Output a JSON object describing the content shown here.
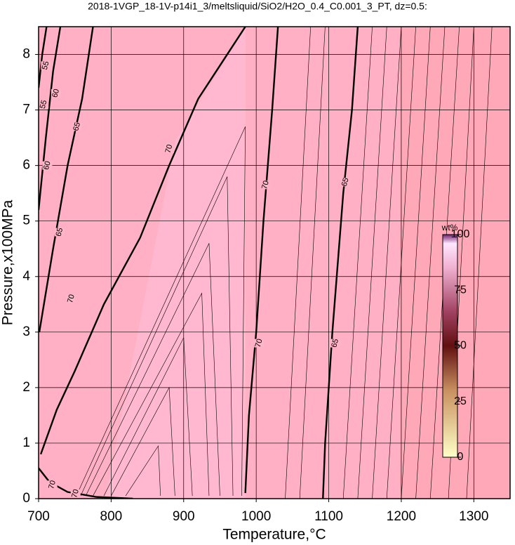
{
  "chart_data": {
    "type": "contour",
    "title": "2018-1VGP_18-1V-p14i1_3/meltsliquid/SiO2/H2O_0.4_C0.001_3_PT, dz=0.5:",
    "x_label": "Temperature,°C",
    "y_label": "Pressure,x100MPa",
    "xlim": [
      700,
      1350
    ],
    "ylim": [
      0,
      8.5
    ],
    "xticks": [
      700,
      800,
      900,
      1000,
      1100,
      1200,
      1300
    ],
    "yticks": [
      0,
      1,
      2,
      3,
      4,
      5,
      6,
      7,
      8
    ],
    "grid": true,
    "contours": [
      {
        "level": 70,
        "T": [
          703,
          725,
          750,
          790,
          840,
          880,
          920,
          955,
          985
        ],
        "P": [
          0.8,
          1.6,
          2.3,
          3.5,
          4.7,
          6.0,
          7.2,
          7.9,
          8.5
        ],
        "labels": [
          {
            "text": "70",
            "T": 745,
            "P": 3.6
          },
          {
            "text": "70",
            "T": 880,
            "P": 6.3
          }
        ]
      },
      {
        "level": 70,
        "T": [
          700,
          715,
          740,
          780,
          830
        ],
        "P": [
          0.55,
          0.3,
          0.12,
          0.03,
          0.0
        ],
        "labels": [
          {
            "text": "70",
            "T": 719,
            "P": 0.25
          },
          {
            "text": "70",
            "T": 751,
            "P": 0.09
          }
        ]
      },
      {
        "level": 70,
        "T": [
          985,
          990,
          1000,
          1010,
          1022,
          1030
        ],
        "P": [
          0.1,
          1.5,
          3.0,
          5.0,
          7.0,
          8.5
        ],
        "labels": [
          {
            "text": "70",
            "T": 1004,
            "P": 2.8
          },
          {
            "text": "70",
            "T": 1013,
            "P": 5.65
          }
        ]
      },
      {
        "level": 65,
        "T": [
          1092,
          1095,
          1105,
          1120,
          1132,
          1140
        ],
        "P": [
          0.0,
          1.0,
          3.0,
          5.5,
          7.0,
          8.5
        ],
        "labels": [
          {
            "text": "65",
            "T": 1109,
            "P": 2.8
          },
          {
            "text": "65",
            "T": 1123,
            "P": 5.7
          }
        ]
      },
      {
        "level": 65,
        "T": [
          701,
          720,
          740,
          760,
          775
        ],
        "P": [
          3.0,
          4.5,
          6.0,
          7.2,
          8.5
        ],
        "labels": [
          {
            "text": "65",
            "T": 729,
            "P": 4.8
          },
          {
            "text": "65",
            "T": 753,
            "P": 6.7
          }
        ]
      },
      {
        "level": 60,
        "T": [
          700,
          710,
          720,
          730
        ],
        "P": [
          5.2,
          6.5,
          7.7,
          8.5
        ],
        "labels": [
          {
            "text": "60",
            "T": 712,
            "P": 6.0
          },
          {
            "text": "60",
            "T": 724,
            "P": 7.3
          }
        ]
      },
      {
        "level": 55,
        "T": [
          700,
          705,
          711
        ],
        "P": [
          7.4,
          8.0,
          8.5
        ],
        "labels": [
          {
            "text": "55",
            "T": 707,
            "P": 7.1
          },
          {
            "text": "55",
            "T": 710,
            "P": 7.8
          }
        ]
      }
    ],
    "minor_contours": [
      {
        "T": [
          820,
          865,
          868
        ],
        "P": [
          0.05,
          0.95,
          0.05
        ]
      },
      {
        "T": [
          800,
          880,
          888
        ],
        "P": [
          0.05,
          2.0,
          0.05
        ]
      },
      {
        "T": [
          790,
          900,
          912
        ],
        "P": [
          0.05,
          2.9,
          0.05
        ]
      },
      {
        "T": [
          775,
          925,
          935
        ],
        "P": [
          0.05,
          3.7,
          0.05
        ]
      },
      {
        "T": [
          765,
          935,
          950
        ],
        "P": [
          0.05,
          4.6,
          0.05
        ]
      },
      {
        "T": [
          758,
          960,
          968
        ],
        "P": [
          0.05,
          5.8,
          0.05
        ]
      },
      {
        "T": [
          752,
          985,
          980
        ],
        "P": [
          0.05,
          6.7,
          0.05
        ]
      },
      {
        "T": [
          1040,
          1075
        ],
        "P": [
          0,
          8.5
        ]
      },
      {
        "T": [
          1060,
          1095
        ],
        "P": [
          0,
          8.5
        ]
      },
      {
        "T": [
          1120,
          1160
        ],
        "P": [
          0,
          8.5
        ]
      },
      {
        "T": [
          1140,
          1180
        ],
        "P": [
          0,
          8.5
        ]
      },
      {
        "T": [
          1160,
          1200
        ],
        "P": [
          0,
          8.5
        ]
      },
      {
        "T": [
          1180,
          1220
        ],
        "P": [
          0,
          8.5
        ]
      },
      {
        "T": [
          1200,
          1240
        ],
        "P": [
          0,
          8.5
        ]
      },
      {
        "T": [
          1220,
          1260
        ],
        "P": [
          0,
          8.5
        ]
      },
      {
        "T": [
          1240,
          1280
        ],
        "P": [
          0,
          8.5
        ]
      },
      {
        "T": [
          1265,
          1300
        ],
        "P": [
          0,
          8.5
        ]
      },
      {
        "T": [
          1290,
          1325
        ],
        "P": [
          0,
          8.5
        ]
      }
    ],
    "colorbar": {
      "label": "wt%",
      "lim": [
        0,
        100
      ],
      "ticks": [
        0,
        25,
        50,
        75,
        100
      ]
    }
  }
}
